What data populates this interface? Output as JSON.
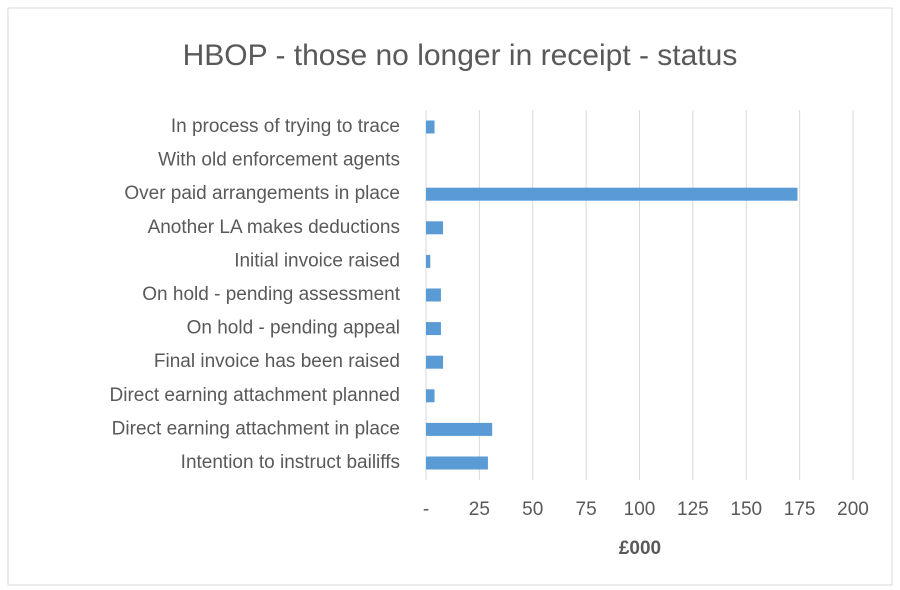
{
  "chart_data": {
    "type": "bar",
    "orientation": "horizontal",
    "title": "HBOP - those no longer in receipt - status",
    "categories": [
      "In process of trying to trace",
      "With old enforcement agents",
      "Over paid arrangements in place",
      "Another LA makes deductions",
      "Initial invoice raised",
      "On hold - pending assessment",
      "On hold - pending appeal",
      "Final invoice has been raised",
      "Direct earning attachment planned",
      "Direct earning attachment in place",
      "Intention to instruct bailiffs"
    ],
    "values": [
      4,
      0,
      174,
      8,
      2,
      7,
      7,
      8,
      4,
      31,
      29
    ],
    "color": "#5b9bd5",
    "xlabel": "£000",
    "xlim": [
      0,
      200
    ],
    "xticks": [
      {
        "value": 0,
        "label": "-"
      },
      25,
      50,
      75,
      100,
      125,
      150,
      175,
      200
    ],
    "grid": true
  }
}
